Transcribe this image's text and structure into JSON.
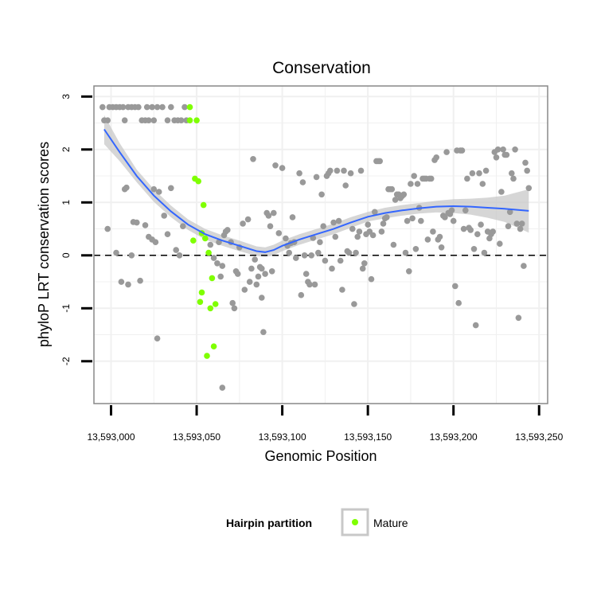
{
  "chart_data": {
    "type": "scatter",
    "title": "Conservation",
    "xlabel": "Genomic Position",
    "ylabel": "phyloP LRT conservation scores",
    "xlim": [
      12990,
      13255
    ],
    "ylim": [
      -2.8,
      3.2
    ],
    "x_ticks": [
      13000,
      13050,
      13100,
      13150,
      13200,
      13250
    ],
    "x_tick_labels": [
      "13,593,000",
      "13,593,050",
      "13,593,100",
      "13,593,150",
      "13,593,200",
      "13,593,250"
    ],
    "y_ticks": [
      -2,
      -1,
      0,
      1,
      2,
      3
    ],
    "y_tick_labels": [
      "-2",
      "-1",
      "0",
      "1",
      "2",
      "3"
    ],
    "x_unit_note": "x values are offsets so that 13000 = 13,593,000",
    "reference_line": {
      "y": 0,
      "style": "dashed"
    },
    "legend": {
      "title": "Hairpin partition",
      "entries": [
        "Mature"
      ]
    },
    "colors": {
      "other": "#999999",
      "mature": "#7fff00",
      "smooth": "#3366ff",
      "band": "#c8c8c8",
      "grid": "#f0f0f0",
      "frame": "#888888"
    },
    "series": [
      {
        "name": "Other",
        "points": [
          [
            12995,
            2.8
          ],
          [
            12996,
            2.55
          ],
          [
            12998,
            2.55
          ],
          [
            12999,
            2.8
          ],
          [
            13001,
            2.8
          ],
          [
            13003,
            2.8
          ],
          [
            13005,
            2.8
          ],
          [
            13007,
            2.8
          ],
          [
            13008,
            2.55
          ],
          [
            13010,
            2.8
          ],
          [
            13012,
            2.8
          ],
          [
            13014,
            2.8
          ],
          [
            13016,
            2.8
          ],
          [
            13018,
            2.55
          ],
          [
            13020,
            2.55
          ],
          [
            13021,
            2.8
          ],
          [
            13022,
            2.55
          ],
          [
            13024,
            2.8
          ],
          [
            13025,
            2.55
          ],
          [
            13027,
            2.8
          ],
          [
            13030,
            2.8
          ],
          [
            13033,
            2.55
          ],
          [
            13035,
            2.8
          ],
          [
            13037,
            2.55
          ],
          [
            13039,
            2.55
          ],
          [
            13041,
            2.55
          ],
          [
            13043,
            2.8
          ],
          [
            13044,
            2.55
          ],
          [
            12998,
            0.5
          ],
          [
            13003,
            0.05
          ],
          [
            13006,
            -0.5
          ],
          [
            13008,
            1.25
          ],
          [
            13009,
            1.28
          ],
          [
            13010,
            -0.55
          ],
          [
            13012,
            0
          ],
          [
            13013,
            0.63
          ],
          [
            13015,
            0.62
          ],
          [
            13017,
            -0.48
          ],
          [
            13020,
            0.57
          ],
          [
            13022,
            0.35
          ],
          [
            13024,
            0.3
          ],
          [
            13025,
            1.25
          ],
          [
            13026,
            0.25
          ],
          [
            13027,
            -1.57
          ],
          [
            13028,
            1.2
          ],
          [
            13031,
            0.75
          ],
          [
            13033,
            0.4
          ],
          [
            13035,
            1.27
          ],
          [
            13038,
            0.1
          ],
          [
            13040,
            0
          ],
          [
            13042,
            0.55
          ],
          [
            13058,
            0.2
          ],
          [
            13060,
            -0.05
          ],
          [
            13062,
            -0.15
          ],
          [
            13063,
            0.25
          ],
          [
            13064,
            -0.4
          ],
          [
            13065,
            -0.2
          ],
          [
            13065,
            -2.5
          ],
          [
            13066,
            0.38
          ],
          [
            13067,
            0.45
          ],
          [
            13068,
            0.48
          ],
          [
            13070,
            0.25
          ],
          [
            13071,
            -0.9
          ],
          [
            13072,
            -1
          ],
          [
            13073,
            -0.3
          ],
          [
            13074,
            -0.35
          ],
          [
            13075,
            0.15
          ],
          [
            13077,
            0.6
          ],
          [
            13078,
            -0.65
          ],
          [
            13080,
            0.68
          ],
          [
            13081,
            -0.5
          ],
          [
            13082,
            -0.25
          ],
          [
            13083,
            1.82
          ],
          [
            13084,
            -0.08
          ],
          [
            13085,
            -0.55
          ],
          [
            13086,
            -0.4
          ],
          [
            13087,
            -0.22
          ],
          [
            13088,
            -0.8
          ],
          [
            13088,
            -0.25
          ],
          [
            13089,
            -1.45
          ],
          [
            13090,
            -0.35
          ],
          [
            13091,
            0.8
          ],
          [
            13092,
            0.75
          ],
          [
            13093,
            0.55
          ],
          [
            13094,
            -0.3
          ],
          [
            13095,
            0.8
          ],
          [
            13096,
            1.7
          ],
          [
            13098,
            0.42
          ],
          [
            13100,
            1.65
          ],
          [
            13102,
            0.32
          ],
          [
            13103,
            0.18
          ],
          [
            13104,
            0.05
          ],
          [
            13105,
            0.23
          ],
          [
            13106,
            0.72
          ],
          [
            13107,
            0.25
          ],
          [
            13108,
            -0.05
          ],
          [
            13110,
            1.55
          ],
          [
            13111,
            -0.75
          ],
          [
            13112,
            1.38
          ],
          [
            13113,
            0
          ],
          [
            13114,
            -0.35
          ],
          [
            13115,
            -0.5
          ],
          [
            13116,
            -0.55
          ],
          [
            13117,
            0
          ],
          [
            13118,
            0.33
          ],
          [
            13119,
            -0.55
          ],
          [
            13120,
            1.48
          ],
          [
            13121,
            0.05
          ],
          [
            13122,
            0.25
          ],
          [
            13123,
            1.15
          ],
          [
            13124,
            0.55
          ],
          [
            13125,
            -0.1
          ],
          [
            13126,
            1.5
          ],
          [
            13127,
            1.55
          ],
          [
            13128,
            1.6
          ],
          [
            13129,
            -0.25
          ],
          [
            13130,
            0.62
          ],
          [
            13131,
            0.35
          ],
          [
            13132,
            1.6
          ],
          [
            13133,
            0.65
          ],
          [
            13134,
            -0.1
          ],
          [
            13135,
            -0.65
          ],
          [
            13136,
            1.6
          ],
          [
            13137,
            1.32
          ],
          [
            13138,
            0.08
          ],
          [
            13139,
            0.05
          ],
          [
            13140,
            1.55
          ],
          [
            13141,
            0.5
          ],
          [
            13142,
            -0.92
          ],
          [
            13143,
            0.05
          ],
          [
            13144,
            0.35
          ],
          [
            13145,
            0.45
          ],
          [
            13146,
            1.6
          ],
          [
            13147,
            -0.25
          ],
          [
            13148,
            -0.15
          ],
          [
            13149,
            0.4
          ],
          [
            13150,
            0.58
          ],
          [
            13151,
            0.45
          ],
          [
            13152,
            -0.45
          ],
          [
            13153,
            0.38
          ],
          [
            13154,
            0.82
          ],
          [
            13155,
            1.78
          ],
          [
            13156,
            1.78
          ],
          [
            13157,
            1.78
          ],
          [
            13158,
            0.45
          ],
          [
            13159,
            0.6
          ],
          [
            13160,
            0.7
          ],
          [
            13161,
            0.72
          ],
          [
            13162,
            1.25
          ],
          [
            13163,
            1.25
          ],
          [
            13164,
            1.25
          ],
          [
            13165,
            0.2
          ],
          [
            13166,
            1.05
          ],
          [
            13167,
            1.15
          ],
          [
            13168,
            1.15
          ],
          [
            13169,
            1.08
          ],
          [
            13170,
            1.12
          ],
          [
            13171,
            1.15
          ],
          [
            13172,
            0.05
          ],
          [
            13173,
            0.65
          ],
          [
            13174,
            -0.3
          ],
          [
            13175,
            1.35
          ],
          [
            13176,
            0.7
          ],
          [
            13177,
            1.5
          ],
          [
            13178,
            0.12
          ],
          [
            13179,
            1.35
          ],
          [
            13180,
            0.9
          ],
          [
            13181,
            0.65
          ],
          [
            13182,
            1.45
          ],
          [
            13183,
            1.45
          ],
          [
            13184,
            1.45
          ],
          [
            13185,
            0.3
          ],
          [
            13186,
            1.45
          ],
          [
            13187,
            1.45
          ],
          [
            13188,
            0.45
          ],
          [
            13189,
            1.8
          ],
          [
            13190,
            1.85
          ],
          [
            13191,
            0.3
          ],
          [
            13192,
            0.35
          ],
          [
            13193,
            0.15
          ],
          [
            13194,
            0.75
          ],
          [
            13195,
            0.72
          ],
          [
            13196,
            1.95
          ],
          [
            13197,
            0.8
          ],
          [
            13198,
            0.78
          ],
          [
            13199,
            0.85
          ],
          [
            13200,
            0.65
          ],
          [
            13201,
            -0.58
          ],
          [
            13202,
            1.98
          ],
          [
            13203,
            -0.9
          ],
          [
            13204,
            1.98
          ],
          [
            13205,
            1.98
          ],
          [
            13206,
            0.5
          ],
          [
            13207,
            0.85
          ],
          [
            13208,
            1.45
          ],
          [
            13209,
            0.52
          ],
          [
            13210,
            0.48
          ],
          [
            13211,
            1.55
          ],
          [
            13212,
            0.12
          ],
          [
            13213,
            -1.32
          ],
          [
            13214,
            0.4
          ],
          [
            13215,
            1.55
          ],
          [
            13216,
            0.58
          ],
          [
            13217,
            1.35
          ],
          [
            13218,
            0.05
          ],
          [
            13219,
            1.6
          ],
          [
            13220,
            0.45
          ],
          [
            13221,
            0.32
          ],
          [
            13222,
            0.4
          ],
          [
            13223,
            0.45
          ],
          [
            13224,
            1.95
          ],
          [
            13225,
            1.85
          ],
          [
            13226,
            2
          ],
          [
            13227,
            0.22
          ],
          [
            13228,
            1.2
          ],
          [
            13229,
            2
          ],
          [
            13230,
            1.9
          ],
          [
            13231,
            1.9
          ],
          [
            13232,
            0.55
          ],
          [
            13233,
            0.82
          ],
          [
            13234,
            1.55
          ],
          [
            13235,
            1.45
          ],
          [
            13236,
            2
          ],
          [
            13237,
            0.6
          ],
          [
            13238,
            -1.18
          ],
          [
            13239,
            0.5
          ],
          [
            13240,
            0.6
          ],
          [
            13241,
            -0.2
          ],
          [
            13242,
            1.75
          ],
          [
            13243,
            1.6
          ],
          [
            13244,
            1.27
          ]
        ]
      },
      {
        "name": "Mature",
        "points": [
          [
            13046,
            2.8
          ],
          [
            13046,
            2.55
          ],
          [
            13048,
            0.28
          ],
          [
            13049,
            1.45
          ],
          [
            13050,
            2.55
          ],
          [
            13051,
            1.4
          ],
          [
            13052,
            -0.88
          ],
          [
            13053,
            -0.7
          ],
          [
            13053,
            0.42
          ],
          [
            13054,
            0.95
          ],
          [
            13055,
            0.32
          ],
          [
            13056,
            -1.9
          ],
          [
            13057,
            0.05
          ],
          [
            13058,
            -1.0
          ],
          [
            13059,
            -0.43
          ],
          [
            13060,
            -1.72
          ],
          [
            13061,
            -0.92
          ]
        ]
      }
    ],
    "smooth": {
      "x": [
        12996,
        13005,
        13015,
        13025,
        13035,
        13045,
        13055,
        13065,
        13075,
        13085,
        13090,
        13095,
        13100,
        13110,
        13120,
        13130,
        13140,
        13150,
        13160,
        13170,
        13180,
        13190,
        13200,
        13210,
        13220,
        13230,
        13244
      ],
      "y": [
        2.38,
        1.95,
        1.5,
        1.13,
        0.83,
        0.58,
        0.4,
        0.28,
        0.18,
        0.08,
        0.06,
        0.1,
        0.18,
        0.3,
        0.4,
        0.5,
        0.62,
        0.73,
        0.8,
        0.85,
        0.89,
        0.92,
        0.93,
        0.92,
        0.9,
        0.88,
        0.84
      ],
      "upper": [
        2.65,
        2.12,
        1.62,
        1.25,
        0.94,
        0.68,
        0.5,
        0.38,
        0.28,
        0.17,
        0.15,
        0.2,
        0.28,
        0.4,
        0.5,
        0.6,
        0.72,
        0.82,
        0.9,
        0.95,
        0.99,
        1.03,
        1.06,
        1.07,
        1.09,
        1.13,
        1.25
      ],
      "lower": [
        2.1,
        1.78,
        1.38,
        1.01,
        0.72,
        0.48,
        0.3,
        0.18,
        0.08,
        -0.01,
        -0.03,
        0.0,
        0.08,
        0.2,
        0.3,
        0.4,
        0.52,
        0.64,
        0.7,
        0.75,
        0.79,
        0.81,
        0.8,
        0.77,
        0.71,
        0.63,
        0.43
      ]
    }
  }
}
